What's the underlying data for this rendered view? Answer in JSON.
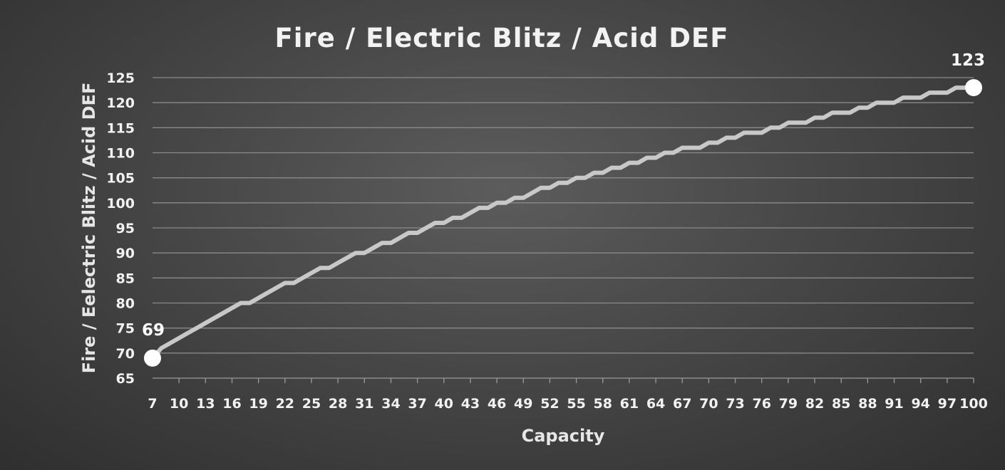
{
  "chart_data": {
    "type": "line",
    "title": "Fire / Electric Blitz / Acid DEF",
    "xlabel": "Capacity",
    "ylabel": "Fire / Eelectric Blitz / Acid DEF",
    "ylim": [
      65,
      125
    ],
    "yticks": [
      65,
      70,
      75,
      80,
      85,
      90,
      95,
      100,
      105,
      110,
      115,
      120,
      125
    ],
    "xlim": [
      7,
      100
    ],
    "xticks": [
      7,
      10,
      13,
      16,
      19,
      22,
      25,
      28,
      31,
      34,
      37,
      40,
      43,
      46,
      49,
      52,
      55,
      58,
      61,
      64,
      67,
      70,
      73,
      76,
      79,
      82,
      85,
      88,
      91,
      94,
      97,
      100
    ],
    "grid": true,
    "legend": "none",
    "series_color": "#c8c8c8",
    "series": [
      {
        "x": [
          7,
          8,
          9,
          10,
          11,
          12,
          13,
          14,
          15,
          16,
          17,
          18,
          19,
          20,
          21,
          22,
          23,
          24,
          25,
          26,
          27,
          28,
          29,
          30,
          31,
          32,
          33,
          34,
          35,
          36,
          37,
          38,
          39,
          40,
          41,
          42,
          43,
          44,
          45,
          46,
          47,
          48,
          49,
          50,
          51,
          52,
          53,
          54,
          55,
          56,
          57,
          58,
          59,
          60,
          61,
          62,
          63,
          64,
          65,
          66,
          67,
          68,
          69,
          70,
          71,
          72,
          73,
          74,
          75,
          76,
          77,
          78,
          79,
          80,
          81,
          82,
          83,
          84,
          85,
          86,
          87,
          88,
          89,
          90,
          91,
          92,
          93,
          94,
          95,
          96,
          97,
          98,
          99,
          100
        ],
        "values": [
          69,
          71,
          72,
          73,
          74,
          75,
          76,
          77,
          78,
          79,
          80,
          80,
          81,
          82,
          83,
          84,
          84,
          85,
          86,
          87,
          87,
          88,
          89,
          90,
          90,
          91,
          92,
          92,
          93,
          94,
          94,
          95,
          96,
          96,
          97,
          97,
          98,
          99,
          99,
          100,
          100,
          101,
          101,
          102,
          103,
          103,
          104,
          104,
          105,
          105,
          106,
          106,
          107,
          107,
          108,
          108,
          109,
          109,
          110,
          110,
          111,
          111,
          111,
          112,
          112,
          113,
          113,
          114,
          114,
          114,
          115,
          115,
          116,
          116,
          116,
          117,
          117,
          118,
          118,
          118,
          119,
          119,
          120,
          120,
          120,
          121,
          121,
          121,
          122,
          122,
          122,
          123,
          123,
          123
        ]
      }
    ],
    "data_labels": [
      {
        "x": 7,
        "y": 69,
        "text": "69"
      },
      {
        "x": 100,
        "y": 123,
        "text": "123"
      }
    ]
  }
}
